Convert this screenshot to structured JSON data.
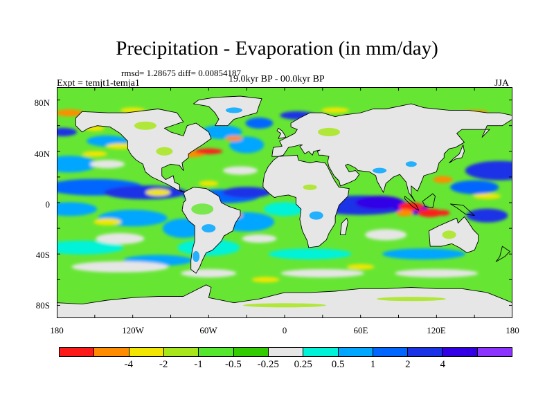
{
  "title": "Precipitation - Evaporation (in mm/day)",
  "stats": "rmsd= 1.28675 diff= 0.00854187",
  "experiment": "Expt = temjt1-temja1",
  "period": "19.0kyr BP - 00.0kyr BP",
  "season": "JJA",
  "lat_labels": [
    "80N",
    "40N",
    "0",
    "40S",
    "80S"
  ],
  "lon_labels": [
    "180",
    "120W",
    "60W",
    "0",
    "60E",
    "120E",
    "180"
  ],
  "colorbar": {
    "colors": [
      "#ff1a1a",
      "#ff8c00",
      "#f2e600",
      "#a6e61a",
      "#55e62e",
      "#33cc00",
      "#e6e6e6",
      "#00f2d9",
      "#00a6ff",
      "#0066ff",
      "#1a33e6",
      "#3300e6",
      "#8c33ff"
    ],
    "labels": [
      "-4",
      "-2",
      "-1",
      "-0.5",
      "-0.25",
      "0.25",
      "0.5",
      "1",
      "2",
      "4"
    ]
  },
  "map_colors": {
    "neutral": "#e6e6e6",
    "green": "#66e633",
    "light_green": "#a6e61a",
    "yellow": "#f2e600",
    "orange": "#ff8c00",
    "red": "#ff1a1a",
    "cyan": "#00f2d9",
    "light_blue": "#00a6ff",
    "blue": "#0066ff",
    "dark_blue": "#1a33e6",
    "indigo": "#3300e6",
    "coast": "#000000"
  }
}
